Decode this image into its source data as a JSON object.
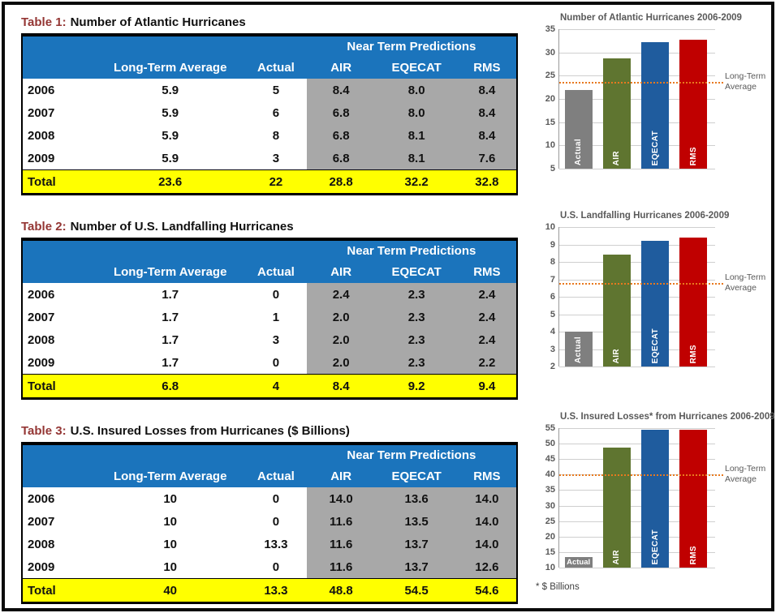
{
  "colors": {
    "header_blue": "#1B74BC",
    "prediction_gray": "#A8A8A8",
    "total_yellow": "#FFFF00",
    "table_title_maroon": "#943634",
    "avg_line_orange": "#E8791E",
    "chart_text_gray": "#595959",
    "bar_actual_gray": "#7F7F7F",
    "bar_air_olive": "#5F7530",
    "bar_eqecat_blue": "#1F5C9E",
    "bar_rms_red": "#C00000"
  },
  "page": {
    "tables": [
      {
        "title_prefix": "Table 1:",
        "title_rest": "Number of Atlantic Hurricanes",
        "group_header": "Near Term Predictions",
        "col_headers": [
          "",
          "Long-Term Average",
          "Actual",
          "AIR",
          "EQECAT",
          "RMS"
        ],
        "rows": [
          [
            "2006",
            "5.9",
            "5",
            "8.4",
            "8.0",
            "8.4"
          ],
          [
            "2007",
            "5.9",
            "6",
            "6.8",
            "8.0",
            "8.4"
          ],
          [
            "2008",
            "5.9",
            "8",
            "6.8",
            "8.1",
            "8.4"
          ],
          [
            "2009",
            "5.9",
            "3",
            "6.8",
            "8.1",
            "7.6"
          ]
        ],
        "total": [
          "Total",
          "23.6",
          "22",
          "28.8",
          "32.2",
          "32.8"
        ]
      },
      {
        "title_prefix": "Table 2:",
        "title_rest": "Number of U.S. Landfalling Hurricanes",
        "group_header": "Near Term Predictions",
        "col_headers": [
          "",
          "Long-Term Average",
          "Actual",
          "AIR",
          "EQECAT",
          "RMS"
        ],
        "rows": [
          [
            "2006",
            "1.7",
            "0",
            "2.4",
            "2.3",
            "2.4"
          ],
          [
            "2007",
            "1.7",
            "1",
            "2.0",
            "2.3",
            "2.4"
          ],
          [
            "2008",
            "1.7",
            "3",
            "2.0",
            "2.3",
            "2.4"
          ],
          [
            "2009",
            "1.7",
            "0",
            "2.0",
            "2.3",
            "2.2"
          ]
        ],
        "total": [
          "Total",
          "6.8",
          "4",
          "8.4",
          "9.2",
          "9.4"
        ]
      },
      {
        "title_prefix": "Table 3:",
        "title_rest": "U.S. Insured Losses from Hurricanes ($ Billions)",
        "group_header": "Near Term Predictions",
        "col_headers": [
          "",
          "Long-Term Average",
          "Actual",
          "AIR",
          "EQECAT",
          "RMS"
        ],
        "rows": [
          [
            "2006",
            "10",
            "0",
            "14.0",
            "13.6",
            "14.0"
          ],
          [
            "2007",
            "10",
            "0",
            "11.6",
            "13.5",
            "14.0"
          ],
          [
            "2008",
            "10",
            "13.3",
            "11.6",
            "13.7",
            "14.0"
          ],
          [
            "2009",
            "10",
            "0",
            "11.6",
            "13.7",
            "12.6"
          ]
        ],
        "total": [
          "Total",
          "40",
          "13.3",
          "48.8",
          "54.5",
          "54.6"
        ]
      }
    ]
  },
  "chart_data": [
    {
      "type": "bar",
      "title": "Number of Atlantic Hurricanes 2006-2009",
      "categories": [
        "Actual",
        "AIR",
        "EQECAT",
        "RMS"
      ],
      "values": [
        22,
        28.8,
        32.2,
        32.8
      ],
      "bar_colors": [
        "#7F7F7F",
        "#5F7530",
        "#1F5C9E",
        "#C00000"
      ],
      "ylim": [
        5,
        35
      ],
      "ytick_step": 5,
      "grid": true,
      "legend": "none",
      "avg_line": {
        "value": 23.6,
        "label": [
          "Long-Term",
          "Average"
        ],
        "position": "right"
      }
    },
    {
      "type": "bar",
      "title": "U.S. Landfalling Hurricanes 2006-2009",
      "categories": [
        "Actual",
        "AIR",
        "EQECAT",
        "RMS"
      ],
      "values": [
        4,
        8.4,
        9.2,
        9.4
      ],
      "bar_colors": [
        "#7F7F7F",
        "#5F7530",
        "#1F5C9E",
        "#C00000"
      ],
      "ylim": [
        2,
        10
      ],
      "ytick_step": 1,
      "grid": true,
      "legend": "none",
      "avg_line": {
        "value": 6.8,
        "label": [
          "Long-Term",
          "Average"
        ],
        "position": "right"
      }
    },
    {
      "type": "bar",
      "title": "U.S. Insured Losses* from Hurricanes 2006-2009",
      "categories": [
        "Actual",
        "AIR",
        "EQECAT",
        "RMS"
      ],
      "values": [
        13.3,
        48.8,
        54.5,
        54.6
      ],
      "bar_colors": [
        "#7F7F7F",
        "#5F7530",
        "#1F5C9E",
        "#C00000"
      ],
      "ylim": [
        10,
        55
      ],
      "ytick_step": 5,
      "grid": true,
      "legend": "none",
      "avg_line": {
        "value": 40,
        "label": [
          "Long-Term",
          "Average"
        ],
        "position": "right"
      },
      "footnote": "* $ Billions"
    }
  ]
}
